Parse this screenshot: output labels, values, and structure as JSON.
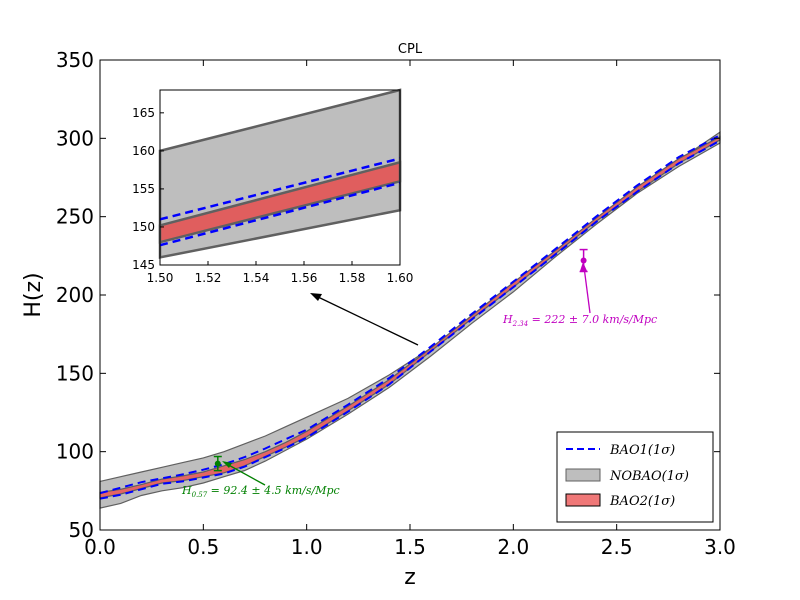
{
  "chart_data": {
    "type": "line",
    "title": "CPL",
    "xlabel": "z",
    "ylabel": "H(z)",
    "xlim": [
      0.0,
      3.0
    ],
    "ylim": [
      50,
      350
    ],
    "xticks": [
      "0.0",
      "0.5",
      "1.0",
      "1.5",
      "2.0",
      "2.5",
      "3.0"
    ],
    "yticks": [
      "50",
      "100",
      "150",
      "200",
      "250",
      "300",
      "350"
    ],
    "grid": false,
    "legend_position": "lower-right",
    "curve_z": [
      0,
      0.1,
      0.2,
      0.3,
      0.4,
      0.5,
      0.6,
      0.7,
      0.8,
      0.9,
      1.0,
      1.2,
      1.4,
      1.6,
      1.8,
      2.0,
      2.2,
      2.4,
      2.6,
      2.8,
      3.0
    ],
    "series": [
      {
        "name": "NOBAO(1σ)",
        "legend": "NOBAO(1σ)",
        "kind": "band",
        "color": "#bebebe",
        "edge": "#606060",
        "lower": [
          64,
          67,
          72,
          75,
          77,
          80,
          84,
          88,
          94,
          101,
          108,
          124,
          141,
          161,
          182,
          202,
          224,
          245,
          265,
          282,
          297
        ],
        "upper": [
          81,
          84,
          87,
          90,
          93,
          96,
          100,
          105,
          110,
          116,
          122,
          134,
          149,
          166,
          186,
          206,
          227,
          248,
          268,
          286,
          304
        ]
      },
      {
        "name": "BAO2(1σ)",
        "legend": "BAO2(1σ)",
        "kind": "band",
        "color": "#e46464",
        "edge": "#606060",
        "lower": [
          70.5,
          73,
          76.5,
          80,
          81.5,
          84,
          86.5,
          91,
          97,
          103,
          109.5,
          126,
          143,
          164,
          185,
          205,
          226,
          247,
          266,
          284,
          299
        ],
        "upper": [
          74,
          76,
          79,
          82.5,
          84.5,
          87,
          91,
          95,
          100,
          106,
          113,
          129,
          146,
          166,
          187,
          208,
          228,
          249,
          269,
          287,
          301
        ]
      },
      {
        "name": "BAO1(1σ) lower",
        "legend": "BAO1(1σ)",
        "kind": "dashed",
        "color": "#0000ff",
        "values": [
          70,
          72.5,
          76,
          79.5,
          81,
          83.5,
          86,
          90.5,
          96.5,
          102.5,
          109,
          125.5,
          143,
          164,
          184.5,
          205,
          225.5,
          246.5,
          266,
          284,
          298.5
        ]
      },
      {
        "name": "BAO1(1σ) upper",
        "legend": "BAO1(1σ)",
        "kind": "dashed",
        "color": "#0000ff",
        "values": [
          73.5,
          77,
          80.5,
          83,
          85.5,
          88.5,
          92,
          96.5,
          102,
          108,
          114,
          130,
          147,
          167,
          188,
          208.5,
          229,
          250,
          270,
          288,
          302
        ]
      }
    ],
    "legend_entries": [
      "BAO1(1σ)",
      "NOBAO(1σ)",
      "BAO2(1σ)"
    ],
    "data_points": [
      {
        "name": "H_0.57",
        "x": 0.57,
        "y": 92.4,
        "err": 4.5,
        "color": "#008000",
        "label_main": "H",
        "label_sub": "0.57",
        "label_rest": " = 92.4 ± 4.5 km/s/Mpc"
      },
      {
        "name": "H_2.34",
        "x": 2.34,
        "y": 222,
        "err": 7.0,
        "color": "#c000c0",
        "label_main": "H",
        "label_sub": "2.34",
        "label_rest": " = 222 ± 7.0 km/s/Mpc"
      }
    ],
    "inset": {
      "xlim": [
        1.5,
        1.6
      ],
      "ylim": [
        145,
        168
      ],
      "xticks": [
        "1.50",
        "1.52",
        "1.54",
        "1.56",
        "1.58",
        "1.60"
      ],
      "yticks": [
        "145",
        "150",
        "155",
        "160",
        "165"
      ],
      "x": [
        1.5,
        1.6
      ],
      "nobao_lower": [
        146.0,
        152.2
      ],
      "nobao_upper": [
        160.0,
        168.0
      ],
      "bao2_lower": [
        148.0,
        156.0
      ],
      "bao2_upper": [
        150.2,
        158.5
      ],
      "bao1_lower": [
        147.6,
        155.8
      ],
      "bao1_upper": [
        151.0,
        159.0
      ]
    }
  }
}
